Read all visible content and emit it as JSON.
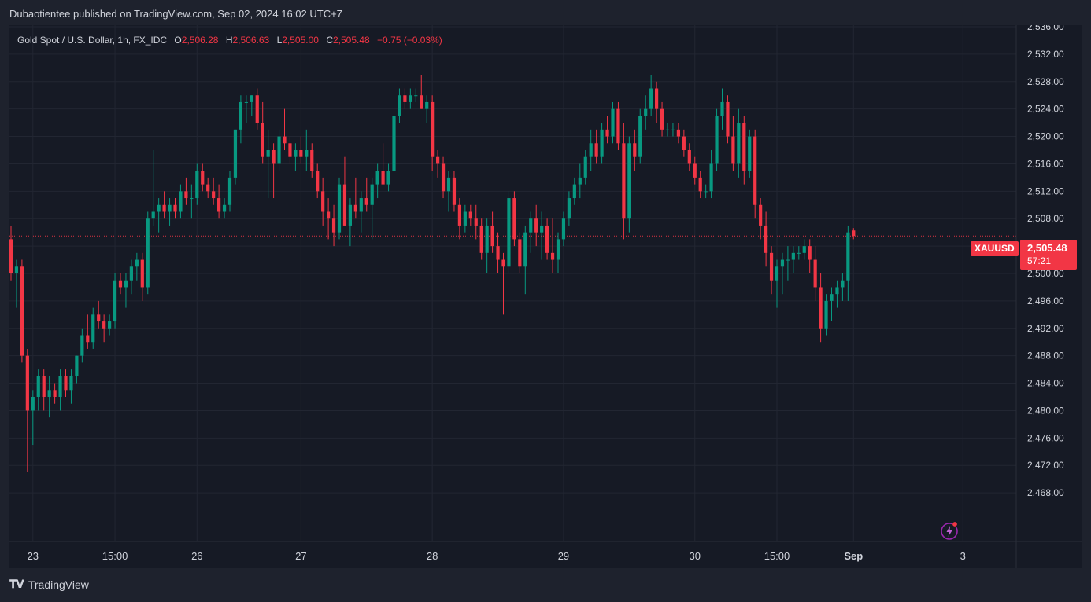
{
  "header": {
    "publisher_line": "Dubaotientee published on TradingView.com, Sep 02, 2024 16:02 UTC+7"
  },
  "legend": {
    "symbol": "Gold Spot / U.S. Dollar, 1h, FX_IDC",
    "open_label": "O",
    "open": "2,506.28",
    "high_label": "H",
    "high": "2,506.63",
    "low_label": "L",
    "low": "2,505.00",
    "close_label": "C",
    "close": "2,505.48",
    "change": "−0.75 (−0.03%)"
  },
  "price_label": {
    "symbol": "XAUUSD",
    "price": "2,505.48",
    "countdown": "57:21"
  },
  "footer": {
    "brand": "TradingView"
  },
  "colors": {
    "up": "#089981",
    "down": "#f23645",
    "background": "#161a25",
    "grid": "#222632",
    "text": "#d1d4dc"
  },
  "chart_data": {
    "type": "candlestick",
    "title": "",
    "xlabel": "",
    "ylabel": "",
    "ylim": [
      2464,
      2536
    ],
    "y_ticks": [
      "2,468.00",
      "2,472.00",
      "2,476.00",
      "2,480.00",
      "2,484.00",
      "2,488.00",
      "2,492.00",
      "2,496.00",
      "2,500.00",
      "2,504.00",
      "2,508.00",
      "2,512.00",
      "2,516.00",
      "2,520.00",
      "2,524.00",
      "2,528.00",
      "2,532.00",
      "2,536.00"
    ],
    "y_tick_values": [
      2468,
      2472,
      2476,
      2480,
      2484,
      2488,
      2492,
      2496,
      2500,
      2504,
      2508,
      2512,
      2516,
      2520,
      2524,
      2528,
      2532,
      2536
    ],
    "x_ticks": [
      {
        "label": "23",
        "bar": 4
      },
      {
        "label": "15:00",
        "bar": 19
      },
      {
        "label": "26",
        "bar": 34
      },
      {
        "label": "27",
        "bar": 53
      },
      {
        "label": "28",
        "bar": 77
      },
      {
        "label": "29",
        "bar": 101
      },
      {
        "label": "30",
        "bar": 125
      },
      {
        "label": "15:00",
        "bar": 140
      },
      {
        "label": "Sep",
        "bar": 154
      },
      {
        "label": "3",
        "bar": 174
      }
    ],
    "last_price": 2505.48,
    "grid": true,
    "candles": [
      [
        2505.0,
        2507.0,
        2499.0,
        2500.0
      ],
      [
        2500.0,
        2502.0,
        2495.0,
        2501.0
      ],
      [
        2501.0,
        2502.0,
        2487.0,
        2488.0
      ],
      [
        2488.0,
        2489.0,
        2471.0,
        2480.0
      ],
      [
        2480.0,
        2483.0,
        2475.0,
        2482.0
      ],
      [
        2482.0,
        2486.0,
        2480.0,
        2485.0
      ],
      [
        2485.0,
        2486.0,
        2480.0,
        2482.0
      ],
      [
        2482.0,
        2485.0,
        2479.0,
        2483.0
      ],
      [
        2483.0,
        2484.0,
        2481.0,
        2482.0
      ],
      [
        2482.0,
        2486.0,
        2480.0,
        2485.0
      ],
      [
        2485.0,
        2486.0,
        2482.0,
        2483.0
      ],
      [
        2483.0,
        2486.0,
        2481.0,
        2485.0
      ],
      [
        2485.0,
        2488.0,
        2484.0,
        2488.0
      ],
      [
        2488.0,
        2492.0,
        2487.0,
        2491.0
      ],
      [
        2491.0,
        2494.0,
        2489.0,
        2490.0
      ],
      [
        2490.0,
        2495.0,
        2489.0,
        2494.0
      ],
      [
        2494.0,
        2496.0,
        2492.0,
        2493.0
      ],
      [
        2493.0,
        2494.0,
        2490.0,
        2492.0
      ],
      [
        2492.0,
        2494.0,
        2491.0,
        2493.0
      ],
      [
        2493.0,
        2500.0,
        2492.0,
        2499.0
      ],
      [
        2499.0,
        2500.0,
        2497.0,
        2498.0
      ],
      [
        2498.0,
        2500.0,
        2495.0,
        2499.0
      ],
      [
        2499.0,
        2502.0,
        2497.0,
        2501.0
      ],
      [
        2501.0,
        2503.0,
        2499.0,
        2502.0
      ],
      [
        2502.0,
        2503.0,
        2496.0,
        2498.0
      ],
      [
        2498.0,
        2509.0,
        2497.0,
        2508.0
      ],
      [
        2508.0,
        2518.0,
        2507.0,
        2509.0
      ],
      [
        2509.0,
        2511.0,
        2506.0,
        2510.0
      ],
      [
        2510.0,
        2512.0,
        2508.0,
        2509.0
      ],
      [
        2509.0,
        2511.0,
        2507.0,
        2510.0
      ],
      [
        2510.0,
        2511.0,
        2508.0,
        2509.0
      ],
      [
        2509.0,
        2513.0,
        2508.0,
        2512.0
      ],
      [
        2512.0,
        2514.0,
        2510.0,
        2511.0
      ],
      [
        2511.0,
        2513.0,
        2508.0,
        2511.0
      ],
      [
        2511.0,
        2516.0,
        2510.0,
        2515.0
      ],
      [
        2515.0,
        2516.0,
        2512.0,
        2513.0
      ],
      [
        2513.0,
        2514.0,
        2511.0,
        2512.0
      ],
      [
        2512.0,
        2514.0,
        2510.0,
        2511.0
      ],
      [
        2511.0,
        2513.0,
        2508.0,
        2509.0
      ],
      [
        2509.0,
        2511.0,
        2508.0,
        2510.0
      ],
      [
        2510.0,
        2515.0,
        2509.0,
        2514.0
      ],
      [
        2514.0,
        2521.0,
        2513.0,
        2521.0
      ],
      [
        2521.0,
        2526.0,
        2519.0,
        2525.0
      ],
      [
        2525.0,
        2526.0,
        2522.0,
        2525.0
      ],
      [
        2525.0,
        2526.0,
        2523.0,
        2526.0
      ],
      [
        2526.0,
        2527.0,
        2521.0,
        2522.0
      ],
      [
        2522.0,
        2525.0,
        2516.0,
        2517.0
      ],
      [
        2517.0,
        2521.0,
        2511.0,
        2518.0
      ],
      [
        2518.0,
        2519.0,
        2511.0,
        2516.0
      ],
      [
        2516.0,
        2521.0,
        2515.0,
        2520.0
      ],
      [
        2520.0,
        2524.0,
        2518.0,
        2519.0
      ],
      [
        2519.0,
        2520.0,
        2516.0,
        2517.0
      ],
      [
        2517.0,
        2519.0,
        2515.0,
        2518.0
      ],
      [
        2518.0,
        2520.0,
        2516.0,
        2517.0
      ],
      [
        2517.0,
        2521.0,
        2515.0,
        2518.0
      ],
      [
        2518.0,
        2519.0,
        2514.0,
        2515.0
      ],
      [
        2515.0,
        2516.0,
        2511.0,
        2512.0
      ],
      [
        2512.0,
        2514.0,
        2507.0,
        2509.0
      ],
      [
        2509.0,
        2511.0,
        2505.0,
        2508.0
      ],
      [
        2508.0,
        2510.0,
        2504.0,
        2506.0
      ],
      [
        2506.0,
        2514.0,
        2505.0,
        2513.0
      ],
      [
        2513.0,
        2517.0,
        2507.0,
        2507.0
      ],
      [
        2507.0,
        2511.0,
        2504.0,
        2510.0
      ],
      [
        2510.0,
        2514.0,
        2508.0,
        2509.0
      ],
      [
        2509.0,
        2512.0,
        2506.0,
        2511.0
      ],
      [
        2511.0,
        2514.0,
        2509.0,
        2510.0
      ],
      [
        2510.0,
        2514.0,
        2505.0,
        2513.0
      ],
      [
        2513.0,
        2516.0,
        2511.0,
        2515.0
      ],
      [
        2515.0,
        2519.0,
        2513.0,
        2513.0
      ],
      [
        2513.0,
        2516.0,
        2512.0,
        2515.0
      ],
      [
        2515.0,
        2524.0,
        2514.0,
        2523.0
      ],
      [
        2523.0,
        2527.0,
        2522.0,
        2526.0
      ],
      [
        2526.0,
        2527.0,
        2524.0,
        2525.0
      ],
      [
        2525.0,
        2527.0,
        2524.0,
        2526.0
      ],
      [
        2526.0,
        2527.0,
        2525.0,
        2526.0
      ],
      [
        2526.0,
        2529.0,
        2524.0,
        2524.0
      ],
      [
        2524.0,
        2526.0,
        2522.0,
        2525.0
      ],
      [
        2525.0,
        2526.0,
        2515.0,
        2517.0
      ],
      [
        2517.0,
        2518.0,
        2514.0,
        2516.0
      ],
      [
        2516.0,
        2517.0,
        2511.0,
        2512.0
      ],
      [
        2512.0,
        2515.0,
        2509.0,
        2514.0
      ],
      [
        2514.0,
        2515.0,
        2509.0,
        2510.0
      ],
      [
        2510.0,
        2511.0,
        2505.0,
        2507.0
      ],
      [
        2507.0,
        2510.0,
        2506.0,
        2509.0
      ],
      [
        2509.0,
        2510.0,
        2507.0,
        2508.0
      ],
      [
        2508.0,
        2510.0,
        2505.0,
        2507.0
      ],
      [
        2507.0,
        2508.0,
        2502.0,
        2503.0
      ],
      [
        2503.0,
        2508.0,
        2500.0,
        2507.0
      ],
      [
        2507.0,
        2509.0,
        2503.0,
        2504.0
      ],
      [
        2504.0,
        2506.0,
        2500.0,
        2502.0
      ],
      [
        2502.0,
        2503.0,
        2494.0,
        2501.0
      ],
      [
        2501.0,
        2512.0,
        2500.0,
        2511.0
      ],
      [
        2511.0,
        2512.0,
        2504.0,
        2505.0
      ],
      [
        2505.0,
        2506.0,
        2500.0,
        2501.0
      ],
      [
        2501.0,
        2507.0,
        2497.0,
        2506.0
      ],
      [
        2506.0,
        2509.0,
        2503.0,
        2508.0
      ],
      [
        2508.0,
        2510.0,
        2504.0,
        2506.0
      ],
      [
        2506.0,
        2509.0,
        2502.0,
        2507.0
      ],
      [
        2507.0,
        2508.0,
        2502.0,
        2503.0
      ],
      [
        2503.0,
        2508.0,
        2500.0,
        2502.0
      ],
      [
        2502.0,
        2506.0,
        2500.0,
        2505.0
      ],
      [
        2505.0,
        2509.0,
        2504.0,
        2508.0
      ],
      [
        2508.0,
        2512.0,
        2507.0,
        2511.0
      ],
      [
        2511.0,
        2514.0,
        2510.0,
        2513.0
      ],
      [
        2513.0,
        2516.0,
        2511.0,
        2514.0
      ],
      [
        2514.0,
        2518.0,
        2513.0,
        2517.0
      ],
      [
        2517.0,
        2521.0,
        2515.0,
        2519.0
      ],
      [
        2519.0,
        2521.0,
        2516.0,
        2517.0
      ],
      [
        2517.0,
        2522.0,
        2516.0,
        2521.0
      ],
      [
        2521.0,
        2523.0,
        2519.0,
        2520.0
      ],
      [
        2520.0,
        2525.0,
        2519.0,
        2524.0
      ],
      [
        2524.0,
        2525.0,
        2518.0,
        2519.0
      ],
      [
        2519.0,
        2522.0,
        2505.0,
        2508.0
      ],
      [
        2508.0,
        2520.0,
        2506.0,
        2519.0
      ],
      [
        2519.0,
        2521.0,
        2515.0,
        2517.0
      ],
      [
        2517.0,
        2524.0,
        2516.0,
        2523.0
      ],
      [
        2523.0,
        2526.0,
        2521.0,
        2524.0
      ],
      [
        2524.0,
        2529.0,
        2523.0,
        2527.0
      ],
      [
        2527.0,
        2528.0,
        2522.0,
        2524.0
      ],
      [
        2524.0,
        2525.0,
        2520.0,
        2521.0
      ],
      [
        2521.0,
        2522.0,
        2520.0,
        2521.0
      ],
      [
        2521.0,
        2522.0,
        2520.0,
        2521.0
      ],
      [
        2521.0,
        2522.0,
        2519.0,
        2520.0
      ],
      [
        2520.0,
        2521.0,
        2517.0,
        2518.0
      ],
      [
        2518.0,
        2519.0,
        2515.0,
        2516.0
      ],
      [
        2516.0,
        2517.0,
        2513.0,
        2514.0
      ],
      [
        2514.0,
        2515.0,
        2511.0,
        2512.0
      ],
      [
        2512.0,
        2513.0,
        2511.0,
        2512.0
      ],
      [
        2512.0,
        2518.0,
        2511.0,
        2516.0
      ],
      [
        2516.0,
        2524.0,
        2515.0,
        2523.0
      ],
      [
        2523.0,
        2527.0,
        2521.0,
        2525.0
      ],
      [
        2525.0,
        2526.0,
        2519.0,
        2520.0
      ],
      [
        2520.0,
        2523.0,
        2515.0,
        2516.0
      ],
      [
        2516.0,
        2524.0,
        2514.0,
        2522.0
      ],
      [
        2522.0,
        2523.0,
        2513.0,
        2515.0
      ],
      [
        2515.0,
        2521.0,
        2514.0,
        2520.0
      ],
      [
        2520.0,
        2521.0,
        2508.0,
        2510.0
      ],
      [
        2510.0,
        2511.0,
        2505.0,
        2507.0
      ],
      [
        2507.0,
        2509.0,
        2501.0,
        2503.0
      ],
      [
        2503.0,
        2504.0,
        2497.0,
        2499.0
      ],
      [
        2499.0,
        2502.0,
        2495.0,
        2501.0
      ],
      [
        2501.0,
        2503.0,
        2497.0,
        2502.0
      ],
      [
        2502.0,
        2504.0,
        2499.0,
        2502.0
      ],
      [
        2502.0,
        2504.0,
        2500.0,
        2503.0
      ],
      [
        2503.0,
        2504.0,
        2502.0,
        2503.0
      ],
      [
        2503.0,
        2505.0,
        2502.0,
        2504.0
      ],
      [
        2504.0,
        2505.0,
        2500.0,
        2502.0
      ],
      [
        2502.0,
        2504.0,
        2496.0,
        2498.0
      ],
      [
        2498.0,
        2500.0,
        2490.0,
        2492.0
      ],
      [
        2492.0,
        2497.0,
        2491.0,
        2496.0
      ],
      [
        2496.0,
        2498.0,
        2493.0,
        2497.0
      ],
      [
        2497.0,
        2499.0,
        2495.0,
        2498.0
      ],
      [
        2498.0,
        2500.0,
        2496.0,
        2499.0
      ],
      [
        2499.0,
        2507.0,
        2496.0,
        2506.0
      ],
      [
        2506.28,
        2506.63,
        2505.0,
        2505.48
      ]
    ]
  }
}
